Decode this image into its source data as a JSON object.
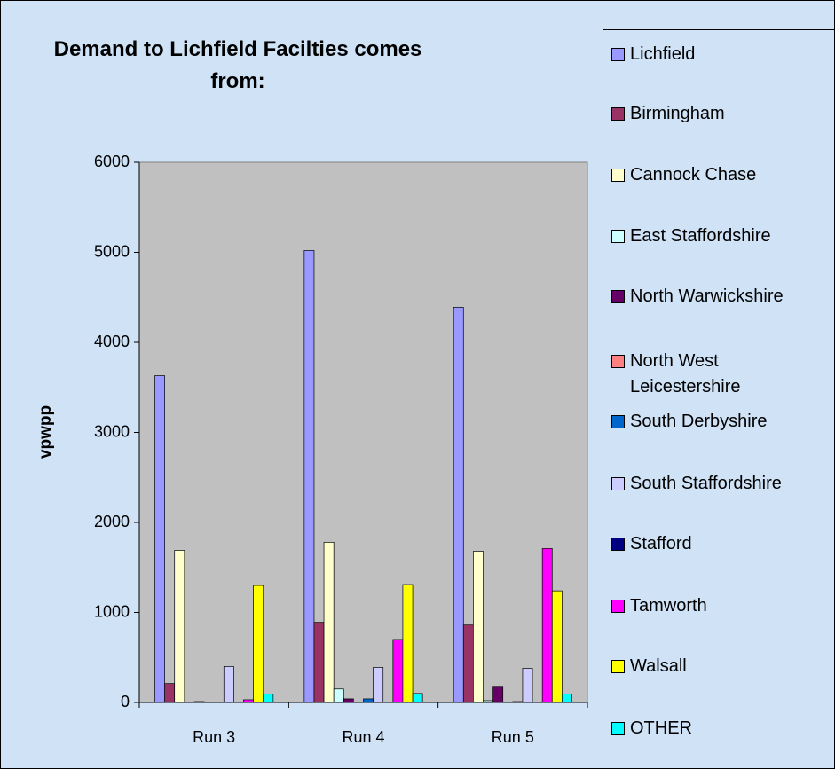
{
  "chart_data": {
    "type": "bar",
    "title": "Demand to Lichfield Facilties comes from:",
    "ylabel": "vpwpp",
    "categories": [
      "Run 3",
      "Run 4",
      "Run 5"
    ],
    "series": [
      {
        "name": "Lichfield",
        "color": "#9999ff",
        "values": [
          3630,
          5020,
          4390
        ]
      },
      {
        "name": "Birmingham",
        "color": "#993366",
        "values": [
          210,
          890,
          860
        ]
      },
      {
        "name": "Cannock Chase",
        "color": "#ffffcc",
        "values": [
          1690,
          1780,
          1680
        ]
      },
      {
        "name": "East Staffordshire",
        "color": "#ccffff",
        "values": [
          5,
          150,
          20
        ]
      },
      {
        "name": "North Warwickshire",
        "color": "#660066",
        "values": [
          10,
          40,
          180
        ]
      },
      {
        "name": "North West Leicestershire",
        "color": "#ff8080",
        "values": [
          5,
          0,
          0
        ]
      },
      {
        "name": "South Derbyshire",
        "color": "#0066cc",
        "values": [
          0,
          40,
          10
        ]
      },
      {
        "name": "South Staffordshire",
        "color": "#ccccff",
        "values": [
          400,
          390,
          380
        ]
      },
      {
        "name": "Stafford",
        "color": "#000080",
        "values": [
          0,
          0,
          0
        ]
      },
      {
        "name": "Tamworth",
        "color": "#ff00ff",
        "values": [
          30,
          700,
          1710
        ]
      },
      {
        "name": "Walsall",
        "color": "#ffff00",
        "values": [
          1300,
          1310,
          1240
        ]
      },
      {
        "name": "OTHER",
        "color": "#00ffff",
        "values": [
          95,
          100,
          95
        ]
      }
    ],
    "ylim": [
      0,
      6000
    ],
    "yticks": [
      0,
      1000,
      2000,
      3000,
      4000,
      5000,
      6000
    ],
    "grid": false,
    "legend": "right"
  }
}
